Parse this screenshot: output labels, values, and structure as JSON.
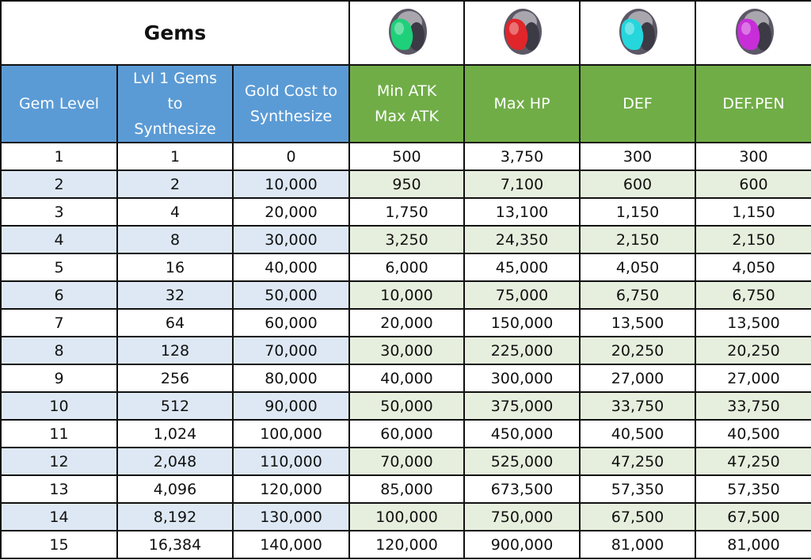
{
  "title": "Gems",
  "gems": [
    {
      "icon": "green-gem-icon",
      "color": "#1fd07a"
    },
    {
      "icon": "red-gem-icon",
      "color": "#e0262a"
    },
    {
      "icon": "cyan-gem-icon",
      "color": "#25d6dc"
    },
    {
      "icon": "purple-gem-icon",
      "color": "#c72ed8"
    }
  ],
  "colors": {
    "header_blue": "#5b9bd5",
    "header_green": "#70ad47",
    "stripe_blue": "#dde8f4",
    "stripe_green": "#e6efdd"
  },
  "headers": [
    [
      "Gem Level"
    ],
    [
      "Lvl 1 Gems",
      "to",
      "Synthesize"
    ],
    [
      "Gold Cost to",
      "Synthesize"
    ],
    [
      "Min ATK",
      "Max ATK"
    ],
    [
      "Max HP"
    ],
    [
      "DEF"
    ],
    [
      "DEF.PEN"
    ]
  ],
  "rows": [
    [
      "1",
      "1",
      "0",
      "500",
      "3,750",
      "300",
      "300"
    ],
    [
      "2",
      "2",
      "10,000",
      "950",
      "7,100",
      "600",
      "600"
    ],
    [
      "3",
      "4",
      "20,000",
      "1,750",
      "13,100",
      "1,150",
      "1,150"
    ],
    [
      "4",
      "8",
      "30,000",
      "3,250",
      "24,350",
      "2,150",
      "2,150"
    ],
    [
      "5",
      "16",
      "40,000",
      "6,000",
      "45,000",
      "4,050",
      "4,050"
    ],
    [
      "6",
      "32",
      "50,000",
      "10,000",
      "75,000",
      "6,750",
      "6,750"
    ],
    [
      "7",
      "64",
      "60,000",
      "20,000",
      "150,000",
      "13,500",
      "13,500"
    ],
    [
      "8",
      "128",
      "70,000",
      "30,000",
      "225,000",
      "20,250",
      "20,250"
    ],
    [
      "9",
      "256",
      "80,000",
      "40,000",
      "300,000",
      "27,000",
      "27,000"
    ],
    [
      "10",
      "512",
      "90,000",
      "50,000",
      "375,000",
      "33,750",
      "33,750"
    ],
    [
      "11",
      "1,024",
      "100,000",
      "60,000",
      "450,000",
      "40,500",
      "40,500"
    ],
    [
      "12",
      "2,048",
      "110,000",
      "70,000",
      "525,000",
      "47,250",
      "47,250"
    ],
    [
      "13",
      "4,096",
      "120,000",
      "85,000",
      "673,500",
      "57,350",
      "57,350"
    ],
    [
      "14",
      "8,192",
      "130,000",
      "100,000",
      "750,000",
      "67,500",
      "67,500"
    ],
    [
      "15",
      "16,384",
      "140,000",
      "120,000",
      "900,000",
      "81,000",
      "81,000"
    ]
  ]
}
